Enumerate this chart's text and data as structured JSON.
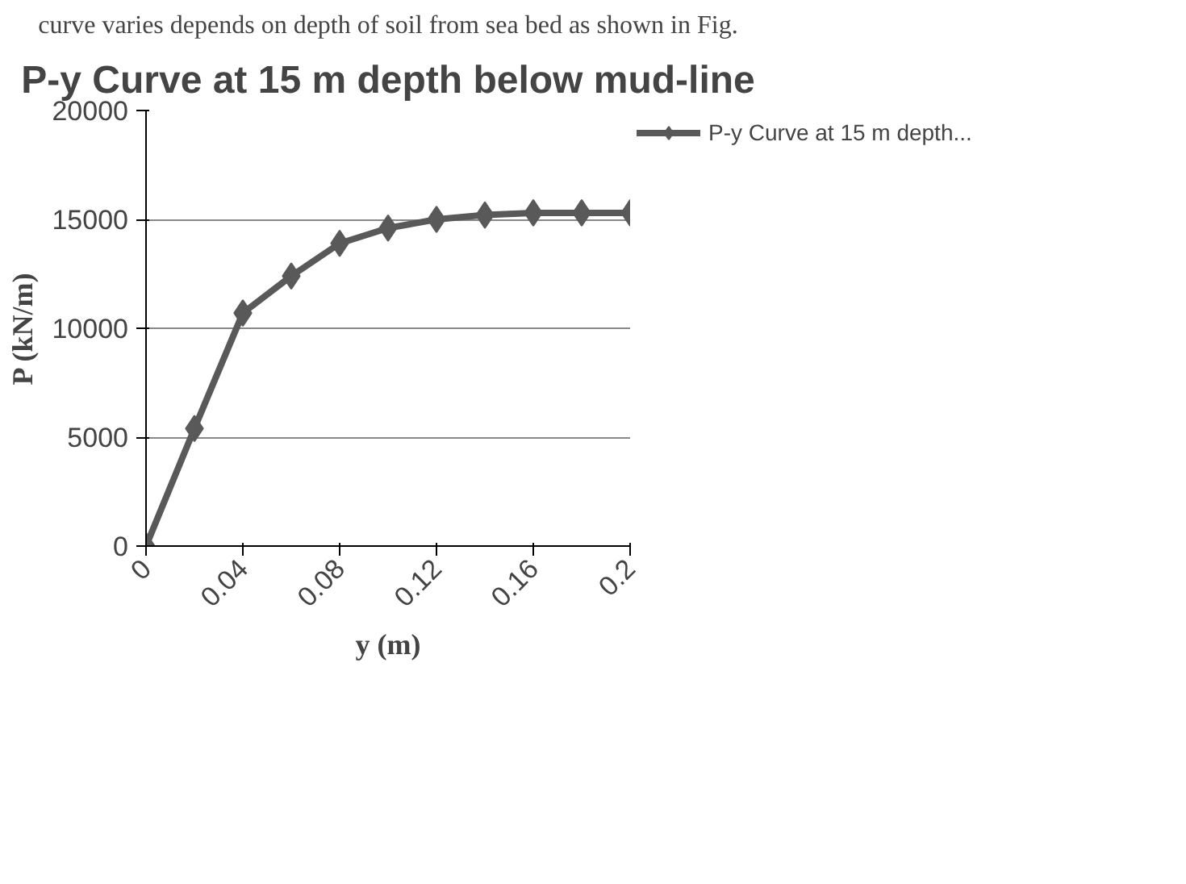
{
  "chart_data": {
    "type": "line",
    "title": "P-y Curve at 15 m depth below mud-line",
    "xlabel": "y (m)",
    "ylabel": "P (kN/m)",
    "x": [
      0,
      0.02,
      0.04,
      0.06,
      0.08,
      0.1,
      0.12,
      0.14,
      0.16,
      0.18,
      0.2
    ],
    "series": [
      {
        "name": "P-y Curve at 15 m depth...",
        "color": "#595959",
        "values": [
          0,
          5400,
          10700,
          12400,
          13900,
          14600,
          15000,
          15200,
          15300,
          15300,
          15300
        ]
      }
    ],
    "xlim": [
      0,
      0.2
    ],
    "xticks": [
      0,
      0.04,
      0.08,
      0.12,
      0.16,
      0.2
    ],
    "ylim": [
      0,
      20000
    ],
    "yticks": [
      0,
      5000,
      10000,
      15000,
      20000
    ],
    "grid": "y",
    "legend": "right",
    "marker": "diamond",
    "line_style": "solid",
    "annotations": [
      "curve varies depends on depth of soil from sea bed as shown in Fig."
    ]
  }
}
